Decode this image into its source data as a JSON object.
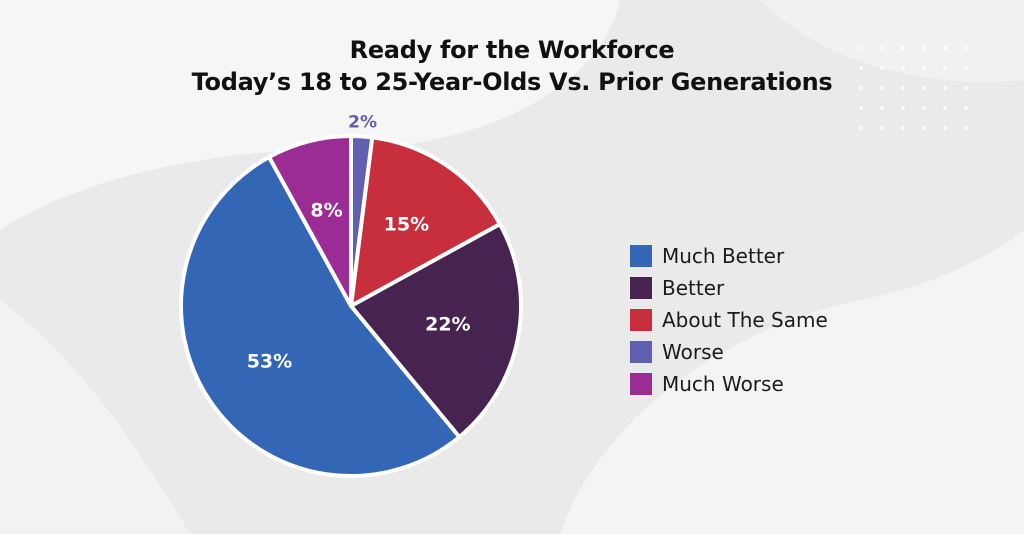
{
  "title_lines": [
    "Ready for the Workforce",
    "Today’s 18 to 25-Year-Olds Vs. Prior Generations"
  ],
  "chart_data": {
    "type": "pie",
    "slices": [
      {
        "label": "Much Better",
        "value": 53,
        "color": "#3366b5",
        "value_label": "53%",
        "label_color": "#ffffff"
      },
      {
        "label": "Better",
        "value": 22,
        "color": "#47244f",
        "value_label": "22%",
        "label_color": "#ffffff"
      },
      {
        "label": "About The Same",
        "value": 15,
        "color": "#c72f3d",
        "value_label": "15%",
        "label_color": "#ffffff"
      },
      {
        "label": "Worse",
        "value": 2,
        "color": "#6160b0",
        "value_label": "2%",
        "label_color": "#6160b0"
      },
      {
        "label": "Much Worse",
        "value": 8,
        "color": "#9b2c93",
        "value_label": "8%",
        "label_color": "#ffffff"
      }
    ],
    "slice_order": [
      "Worse",
      "About The Same",
      "Better",
      "Much Better",
      "Much Worse"
    ],
    "legend_position": "right"
  }
}
